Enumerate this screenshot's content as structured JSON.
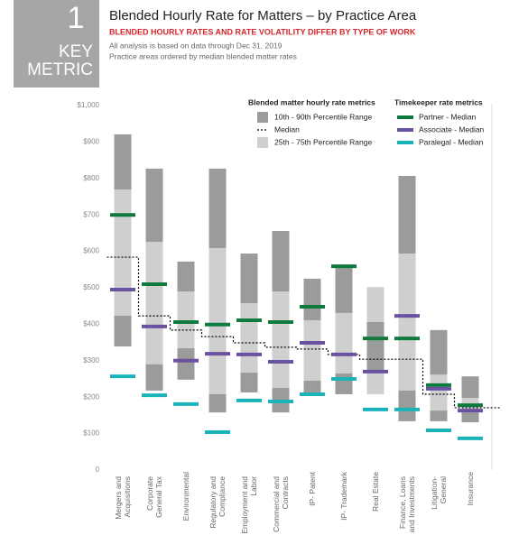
{
  "key_box": {
    "number": "1",
    "label": "KEY METRIC"
  },
  "chart_data": {
    "type": "range_bar",
    "title": "Blended Hourly Rate for Matters – by Practice Area",
    "subtitle": "BLENDED HOURLY RATES AND RATE VOLATILITY DIFFER BY TYPE OF WORK",
    "notes": [
      "All analysis is based on data through Dec 31, 2019",
      "Practice areas ordered by median blended matter rates"
    ],
    "legend_titles": [
      "Blended matter hourly rate metrics",
      "Timekeeper rate metrics"
    ],
    "categories": [
      "Mergers and Acquisitions",
      "Corporate General Tax",
      "Environmental",
      "Regulatory and Compliance",
      "Employment and Labor",
      "Commercial and Contracts",
      "IP- Patent",
      "IP- Trademark",
      "Real Estate",
      "Finance, Loans and Investments",
      "Litigation-General",
      "Insurance"
    ],
    "ranges": [
      {
        "name": "10th - 90th Percentile Range",
        "color": "#9b9b9b",
        "low": [
          339,
          218,
          248,
          158,
          213,
          158,
          203,
          208,
          267,
          134,
          134,
          131
        ],
        "high": [
          921,
          827,
          572,
          827,
          594,
          656,
          525,
          564,
          406,
          807,
          384,
          257
        ]
      },
      {
        "name": "25th - 75th Percentile Range",
        "color": "#cfcfcf",
        "low": [
          423,
          290,
          334,
          208,
          267,
          225,
          245,
          265,
          208,
          218,
          163,
          158
        ],
        "high": [
          770,
          626,
          490,
          609,
          458,
          490,
          411,
          431,
          502,
          594,
          262,
          198
        ]
      }
    ],
    "median": {
      "name": "Median",
      "color": "#000000",
      "values": [
        584,
        423,
        384,
        366,
        349,
        337,
        332,
        317,
        304,
        304,
        208,
        171
      ]
    },
    "series": [
      {
        "name": "Partner - Median",
        "color": "#0e7a3e",
        "values": [
          700,
          510,
          406,
          399,
          411,
          406,
          448,
          559,
          361,
          361,
          233,
          178
        ]
      },
      {
        "name": "Associate - Median",
        "color": "#6a52a0",
        "values": [
          495,
          394,
          300,
          319,
          317,
          297,
          349,
          317,
          270,
          423,
          223,
          163
        ]
      },
      {
        "name": "Paralegal - Median",
        "color": "#1ab3b9",
        "values": [
          257,
          205,
          181,
          104,
          191,
          188,
          208,
          250,
          166,
          166,
          109,
          87
        ]
      }
    ],
    "ylim": [
      0,
      1000
    ],
    "yticks": [
      0,
      {
        "value": 100,
        "label": "$100"
      },
      {
        "value": 200,
        "label": "$200"
      },
      {
        "value": 300,
        "label": "$300"
      },
      {
        "value": 400,
        "label": "$400"
      },
      {
        "value": 500,
        "label": "$500"
      },
      {
        "value": 600,
        "label": "$600"
      },
      {
        "value": 700,
        "label": "$700"
      },
      {
        "value": 800,
        "label": "$800"
      },
      {
        "value": 900,
        "label": "$900"
      },
      {
        "value": 1000,
        "label": "$1,000"
      }
    ]
  }
}
